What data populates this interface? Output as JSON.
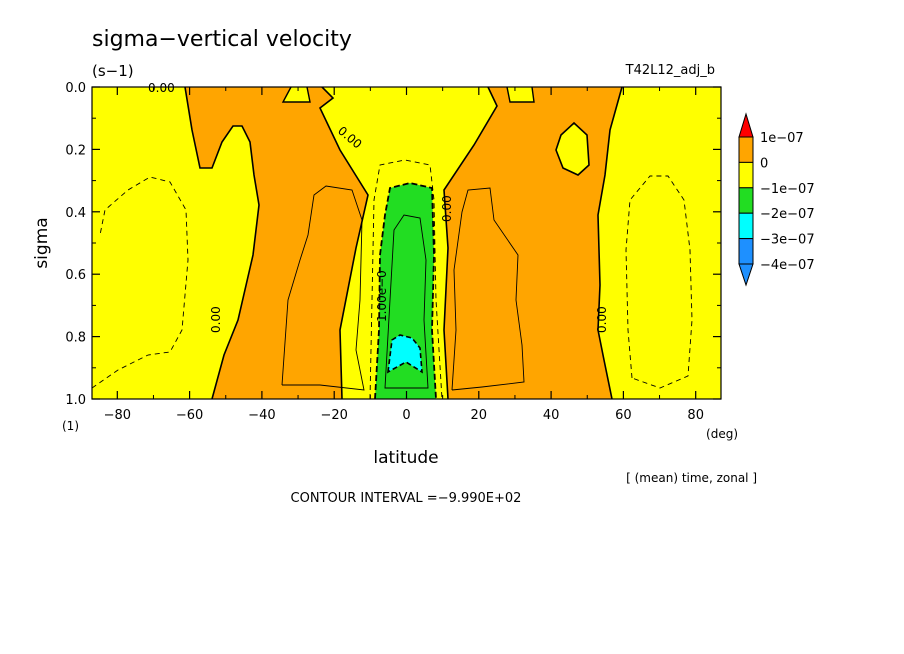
{
  "chart_data": {
    "type": "heatmap",
    "title": "sigma−vertical velocity",
    "units": "(s−1)",
    "run_label": "T42L12_adj_b",
    "xlabel": "latitude",
    "x_units": "(deg)",
    "ylabel": "sigma",
    "y_units": "(1)",
    "xlim": [
      -87,
      87
    ],
    "ylim": [
      0.0,
      1.0
    ],
    "y_inverted": true,
    "x_ticks": [
      "−80",
      "−60",
      "−40",
      "−20",
      "0",
      "20",
      "40",
      "60",
      "80"
    ],
    "x_tick_values": [
      -80,
      -60,
      -40,
      -20,
      0,
      20,
      40,
      60,
      80
    ],
    "y_ticks": [
      "0.0",
      "0.2",
      "0.4",
      "0.6",
      "0.8",
      "1.0"
    ],
    "y_tick_values": [
      0.0,
      0.2,
      0.4,
      0.6,
      0.8,
      1.0
    ],
    "averaging_note": "[ (mean) time, zonal ]",
    "contour_interval_text": "CONTOUR INTERVAL =−9.990E+02",
    "contour_labels": [
      "0.00",
      "0.00",
      "0.00",
      "0.00",
      "0.00",
      "1.00e−0"
    ],
    "colorbar": {
      "levels": [
        "1e−07",
        "0",
        "−1e−07",
        "−2e−07",
        "−3e−07",
        "−4e−07"
      ],
      "colors": [
        "#ff0000",
        "#ffa500",
        "#ffff00",
        "#22dd22",
        "#00ffff",
        "#1e90ff"
      ]
    },
    "fill_colors": {
      "positive": "#ffa500",
      "near_zero": "#ffff00",
      "neg1": "#22dd22",
      "neg2": "#00ffff"
    }
  }
}
